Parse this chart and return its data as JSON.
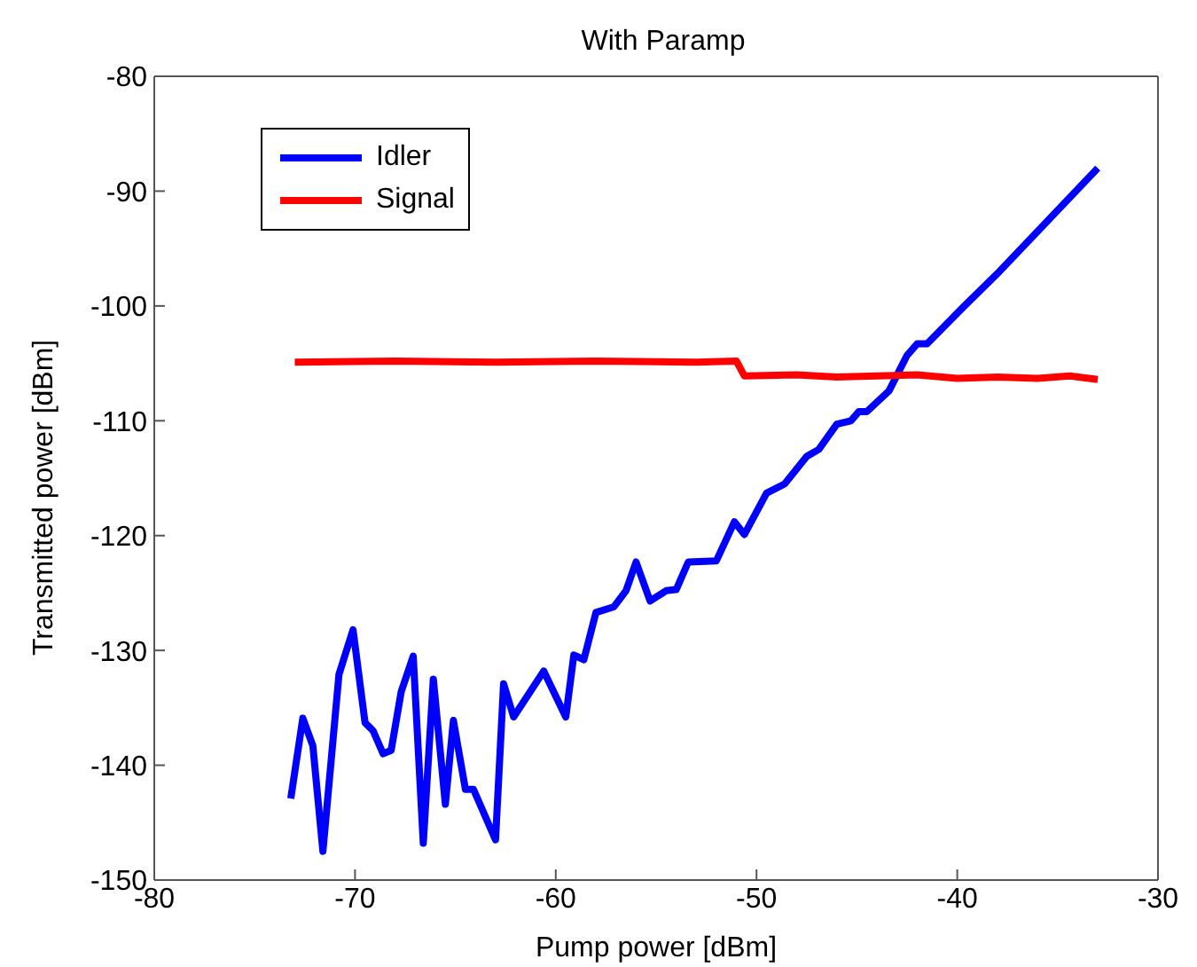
{
  "chart_data": {
    "type": "line",
    "title": "With Paramp",
    "xlabel": "Pump power [dBm]",
    "ylabel": "Transmitted power [dBm]",
    "xlim": [
      -80,
      -30
    ],
    "xticks": [
      -80,
      -70,
      -60,
      -50,
      -40,
      -30
    ],
    "ylim": [
      -150,
      -80
    ],
    "yticks": [
      -150,
      -140,
      -130,
      -120,
      -110,
      -100,
      -90,
      -80
    ],
    "legend": "top left",
    "marker": "none",
    "line_style": "solid",
    "series": [
      {
        "name": "Idler",
        "color": "#0000ff",
        "x": [
          -73.2,
          -72.6,
          -72.1,
          -71.6,
          -70.8,
          -70.1,
          -69.5,
          -69.1,
          -68.6,
          -68.2,
          -67.7,
          -67.1,
          -66.6,
          -66.1,
          -65.5,
          -65.1,
          -64.5,
          -64.1,
          -63.4,
          -63.0,
          -62.6,
          -62.1,
          -60.6,
          -59.5,
          -59.1,
          -58.6,
          -58.0,
          -57.1,
          -56.5,
          -56.0,
          -55.3,
          -54.5,
          -54.0,
          -53.4,
          -52.0,
          -51.1,
          -50.6,
          -49.5,
          -48.6,
          -47.5,
          -46.9,
          -46.0,
          -45.3,
          -44.9,
          -44.5,
          -43.4,
          -42.5,
          -42.0,
          -41.5,
          -39.7,
          -37.9,
          -33.0
        ],
        "values": [
          -142.9,
          -135.9,
          -138.3,
          -147.5,
          -132.1,
          -128.2,
          -136.3,
          -137.0,
          -139.0,
          -138.7,
          -133.6,
          -130.5,
          -146.8,
          -132.5,
          -143.4,
          -136.1,
          -142.1,
          -142.1,
          -144.9,
          -146.5,
          -132.9,
          -135.8,
          -131.8,
          -135.8,
          -130.4,
          -130.8,
          -126.7,
          -126.2,
          -124.8,
          -122.3,
          -125.7,
          -124.8,
          -124.7,
          -122.3,
          -122.2,
          -118.8,
          -119.9,
          -116.3,
          -115.5,
          -113.1,
          -112.5,
          -110.3,
          -110.0,
          -109.2,
          -109.2,
          -107.4,
          -104.3,
          -103.3,
          -103.3,
          -100.1,
          -97.0,
          -88.0
        ]
      },
      {
        "name": "Signal",
        "color": "#ff0000",
        "x": [
          -73.0,
          -68.0,
          -63.0,
          -58.0,
          -53.0,
          -51.0,
          -50.6,
          -48.0,
          -46.0,
          -44.0,
          -42.0,
          -40.0,
          -38.0,
          -36.0,
          -34.4,
          -33.0
        ],
        "values": [
          -104.9,
          -104.8,
          -104.9,
          -104.8,
          -104.9,
          -104.8,
          -106.1,
          -106.0,
          -106.2,
          -106.1,
          -106.0,
          -106.3,
          -106.2,
          -106.3,
          -106.1,
          -106.4
        ]
      }
    ]
  }
}
